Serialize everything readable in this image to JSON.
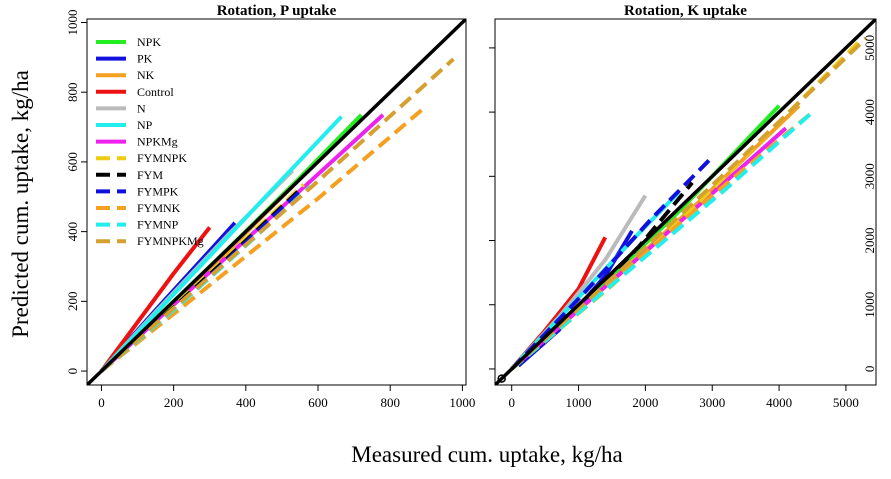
{
  "chart_data": [
    {
      "type": "line",
      "title": "Rotation, P uptake",
      "xlim": [
        -40,
        1010
      ],
      "ylim": [
        -40,
        1010
      ],
      "x_ticks": [
        0,
        200,
        400,
        600,
        800,
        1000
      ],
      "y_ticks": [
        0,
        200,
        400,
        600,
        800,
        1000
      ],
      "x_tick_labels": [
        "0",
        "200",
        "400",
        "600",
        "800",
        "1000"
      ],
      "y_tick_labels": [
        "0",
        "200",
        "400",
        "600",
        "800",
        "1000"
      ],
      "reference_line": "1:1",
      "legend": {
        "position": "top-left"
      },
      "series": [
        {
          "name": "NPK",
          "color": "#22ee22",
          "dash": "solid",
          "x": [
            0,
            150,
            350,
            550,
            720
          ],
          "y": [
            0,
            150,
            350,
            555,
            735
          ]
        },
        {
          "name": "PK",
          "color": "#1111dd",
          "dash": "solid",
          "x": [
            0,
            150,
            300,
            370
          ],
          "y": [
            0,
            175,
            345,
            425
          ]
        },
        {
          "name": "NK",
          "color": "#f5a020",
          "dash": "solid",
          "x": [
            0,
            150,
            350,
            530
          ],
          "y": [
            0,
            150,
            345,
            530
          ]
        },
        {
          "name": "Control",
          "color": "#ee1111",
          "dash": "solid",
          "x": [
            0,
            100,
            200,
            300
          ],
          "y": [
            0,
            140,
            280,
            412
          ]
        },
        {
          "name": "N",
          "color": "#bbbbbb",
          "dash": "solid",
          "x": [
            0,
            150,
            350,
            530
          ],
          "y": [
            0,
            170,
            390,
            575
          ]
        },
        {
          "name": "NP",
          "color": "#22eeee",
          "dash": "solid",
          "x": [
            0,
            200,
            450,
            665
          ],
          "y": [
            0,
            220,
            495,
            730
          ]
        },
        {
          "name": "NPKMg",
          "color": "#ee22ee",
          "dash": "solid",
          "x": [
            0,
            200,
            500,
            780
          ],
          "y": [
            0,
            190,
            470,
            735
          ]
        },
        {
          "name": "FYMNPK",
          "color": "#eecc11",
          "dash": "dash",
          "x": [
            0,
            150,
            350,
            560
          ],
          "y": [
            0,
            140,
            330,
            535
          ]
        },
        {
          "name": "FYM",
          "color": "#000000",
          "dash": "dash",
          "x": [
            0,
            150,
            350,
            550
          ],
          "y": [
            0,
            135,
            325,
            520
          ]
        },
        {
          "name": "FYMPK",
          "color": "#1111dd",
          "dash": "dash",
          "x": [
            0,
            150,
            350,
            550
          ],
          "y": [
            0,
            130,
            320,
            515
          ]
        },
        {
          "name": "FYMNK",
          "color": "#f5a020",
          "dash": "dash",
          "x": [
            0,
            250,
            600,
            900
          ],
          "y": [
            0,
            205,
            495,
            760
          ]
        },
        {
          "name": "FYMNP",
          "color": "#22eeee",
          "dash": "dash",
          "x": [
            0,
            200,
            400,
            580
          ],
          "y": [
            0,
            175,
            360,
            530
          ]
        },
        {
          "name": "FYMNPKMg",
          "color": "#d4a030",
          "dash": "dash",
          "x": [
            0,
            250,
            600,
            975
          ],
          "y": [
            0,
            225,
            545,
            895
          ]
        }
      ]
    },
    {
      "type": "line",
      "title": "Rotation, K uptake",
      "xlim": [
        -250,
        5450
      ],
      "ylim": [
        -250,
        5450
      ],
      "x_ticks": [
        0,
        1000,
        2000,
        3000,
        4000,
        5000
      ],
      "y_ticks": [
        0,
        1000,
        2000,
        3000,
        4000,
        5000
      ],
      "x_tick_labels": [
        "0",
        "1000",
        "2000",
        "3000",
        "4000",
        "5000"
      ],
      "y_tick_labels": [
        "0",
        "1000",
        "2000",
        "3000",
        "4000",
        "5000"
      ],
      "reference_line": "1:1",
      "series": [
        {
          "name": "NPK",
          "color": "#22ee22",
          "dash": "solid",
          "x": [
            0,
            1000,
            2500,
            4000
          ],
          "y": [
            0,
            950,
            2450,
            4100
          ]
        },
        {
          "name": "PK",
          "color": "#1111dd",
          "dash": "solid",
          "x": [
            100,
            700,
            1400,
            1800
          ],
          "y": [
            50,
            600,
            1450,
            2150
          ]
        },
        {
          "name": "NK",
          "color": "#f5a020",
          "dash": "solid",
          "x": [
            0,
            1200,
            2800,
            4300
          ],
          "y": [
            0,
            1100,
            2600,
            4100
          ]
        },
        {
          "name": "Control",
          "color": "#ee1111",
          "dash": "solid",
          "x": [
            0,
            500,
            1000,
            1400
          ],
          "y": [
            0,
            600,
            1250,
            2050
          ]
        },
        {
          "name": "N",
          "color": "#bbbbbb",
          "dash": "solid",
          "x": [
            0,
            700,
            1400,
            2000
          ],
          "y": [
            0,
            800,
            1700,
            2700
          ]
        },
        {
          "name": "NP",
          "color": "#22eeee",
          "dash": "solid",
          "x": [
            0,
            900,
            1800,
            2500
          ],
          "y": [
            0,
            1000,
            2000,
            2750
          ]
        },
        {
          "name": "NPKMg",
          "color": "#ee22ee",
          "dash": "solid",
          "x": [
            0,
            1200,
            2800,
            4100
          ],
          "y": [
            0,
            1100,
            2550,
            3750
          ]
        },
        {
          "name": "FYMNPK",
          "color": "#eecc11",
          "dash": "dash",
          "x": [
            0,
            1500,
            3000,
            5200
          ],
          "y": [
            0,
            1300,
            2800,
            5100
          ]
        },
        {
          "name": "FYM",
          "color": "#000000",
          "dash": "dash",
          "x": [
            0,
            900,
            1900,
            2700
          ],
          "y": [
            0,
            850,
            1900,
            2900
          ]
        },
        {
          "name": "FYMPK",
          "color": "#1111dd",
          "dash": "dash",
          "x": [
            0,
            1100,
            2100,
            3000
          ],
          "y": [
            0,
            1200,
            2350,
            3300
          ]
        },
        {
          "name": "FYMNK",
          "color": "#f5a020",
          "dash": "dash",
          "x": [
            0,
            1500,
            3000,
            4500
          ],
          "y": [
            0,
            1350,
            2700,
            4000
          ]
        },
        {
          "name": "FYMNP",
          "color": "#22eeee",
          "dash": "dash",
          "x": [
            0,
            1600,
            3200,
            4500
          ],
          "y": [
            0,
            1400,
            2800,
            4000
          ]
        },
        {
          "name": "FYMNPKMg",
          "color": "#d4a030",
          "dash": "dash",
          "x": [
            0,
            1700,
            3400,
            5300
          ],
          "y": [
            0,
            1600,
            3250,
            5150
          ]
        }
      ]
    }
  ],
  "xlabel": "Measured cum. uptake, kg/ha",
  "ylabel": "Predicted cum. uptake, kg/ha"
}
